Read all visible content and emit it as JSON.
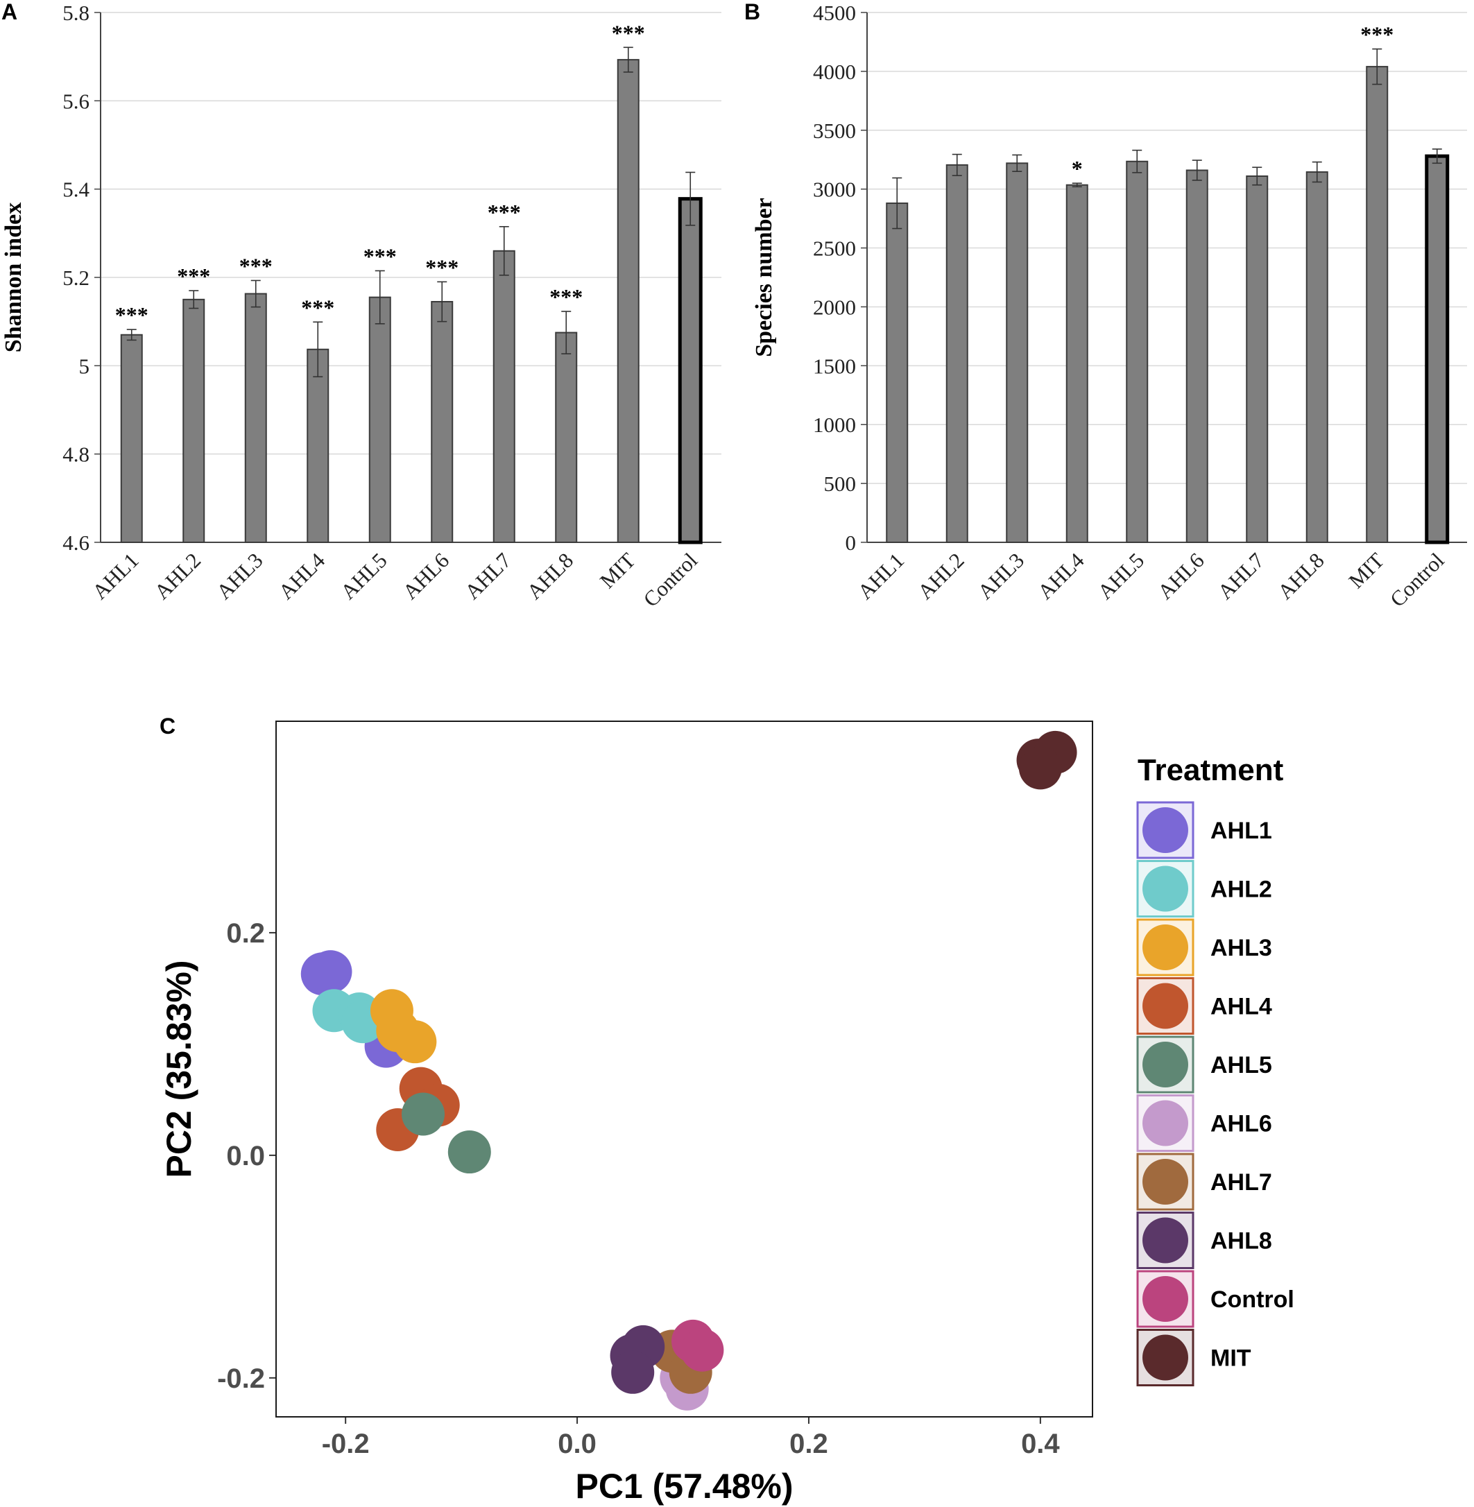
{
  "chart_data": [
    {
      "panel": "A",
      "type": "bar",
      "ylabel": "Shannon index",
      "ylim": [
        4.6,
        5.8
      ],
      "yticks": [
        "4.6",
        "4.8",
        "5",
        "5.2",
        "5.4",
        "5.6",
        "5.8"
      ],
      "grid": true,
      "categories": [
        "AHL1",
        "AHL2",
        "AHL3",
        "AHL4",
        "AHL5",
        "AHL6",
        "AHL7",
        "AHL8",
        "MIT",
        "Control"
      ],
      "values": [
        5.07,
        5.15,
        5.163,
        5.037,
        5.155,
        5.145,
        5.26,
        5.075,
        5.693,
        5.378
      ],
      "errors": [
        0.012,
        0.02,
        0.03,
        0.062,
        0.06,
        0.045,
        0.055,
        0.048,
        0.028,
        0.06
      ],
      "significance": [
        "***",
        "***",
        "***",
        "***",
        "***",
        "***",
        "***",
        "***",
        "***",
        ""
      ],
      "highlight": "Control"
    },
    {
      "panel": "B",
      "type": "bar",
      "ylabel": "Species number",
      "ylim": [
        0,
        4500
      ],
      "yticks": [
        "0",
        "500",
        "1000",
        "1500",
        "2000",
        "2500",
        "3000",
        "3500",
        "4000",
        "4500"
      ],
      "grid": true,
      "categories": [
        "AHL1",
        "AHL2",
        "AHL3",
        "AHL4",
        "AHL5",
        "AHL6",
        "AHL7",
        "AHL8",
        "MIT",
        "Control"
      ],
      "values": [
        2880,
        3205,
        3220,
        3035,
        3235,
        3160,
        3110,
        3145,
        4040,
        3280
      ],
      "errors": [
        215,
        90,
        70,
        15,
        95,
        85,
        75,
        85,
        150,
        60
      ],
      "significance": [
        "",
        "",
        "",
        "*",
        "",
        "",
        "",
        "",
        "***",
        ""
      ],
      "highlight": "Control"
    },
    {
      "panel": "C",
      "type": "scatter",
      "xlabel": "PC1 (57.48%)",
      "ylabel": "PC2 (35.83%)",
      "xlim": [
        -0.26,
        0.445
      ],
      "ylim": [
        -0.235,
        0.39
      ],
      "xticks": [
        "-0.2",
        "0.0",
        "0.2",
        "0.4"
      ],
      "yticks": [
        "-0.2",
        "0.0",
        "0.2"
      ],
      "legend_title": "Treatment",
      "legend_position": "right",
      "series": [
        {
          "name": "AHL1",
          "color": "#7B68D6",
          "points": [
            [
              -0.22,
              0.163
            ],
            [
              -0.213,
              0.165
            ],
            [
              -0.165,
              0.098
            ]
          ]
        },
        {
          "name": "AHL2",
          "color": "#6FCBCB",
          "points": [
            [
              -0.21,
              0.13
            ],
            [
              -0.188,
              0.127
            ],
            [
              -0.185,
              0.12
            ]
          ]
        },
        {
          "name": "AHL3",
          "color": "#E9A42A",
          "points": [
            [
              -0.16,
              0.13
            ],
            [
              -0.155,
              0.112
            ],
            [
              -0.14,
              0.102
            ]
          ]
        },
        {
          "name": "AHL4",
          "color": "#C0562E",
          "points": [
            [
              -0.135,
              0.06
            ],
            [
              -0.12,
              0.045
            ],
            [
              -0.155,
              0.023
            ]
          ]
        },
        {
          "name": "AHL5",
          "color": "#5F8774",
          "points": [
            [
              -0.133,
              0.037
            ],
            [
              -0.093,
              0.003
            ]
          ]
        },
        {
          "name": "AHL6",
          "color": "#C49ACC",
          "points": [
            [
              0.09,
              -0.2
            ],
            [
              0.095,
              -0.21
            ]
          ]
        },
        {
          "name": "AHL7",
          "color": "#A06A3E",
          "points": [
            [
              0.082,
              -0.176
            ],
            [
              0.098,
              -0.195
            ]
          ]
        },
        {
          "name": "AHL8",
          "color": "#5B3868",
          "points": [
            [
              0.047,
              -0.18
            ],
            [
              0.057,
              -0.172
            ],
            [
              0.048,
              -0.195
            ]
          ]
        },
        {
          "name": "Control",
          "color": "#BB447E",
          "points": [
            [
              0.1,
              -0.167
            ],
            [
              0.108,
              -0.175
            ]
          ]
        },
        {
          "name": "MIT",
          "color": "#5A2A2C",
          "points": [
            [
              0.398,
              0.355
            ],
            [
              0.413,
              0.362
            ],
            [
              0.4,
              0.348
            ]
          ]
        }
      ],
      "legend_order": [
        "AHL1",
        "AHL2",
        "AHL3",
        "AHL4",
        "AHL5",
        "AHL6",
        "AHL7",
        "AHL8",
        "Control",
        "MIT"
      ]
    }
  ]
}
